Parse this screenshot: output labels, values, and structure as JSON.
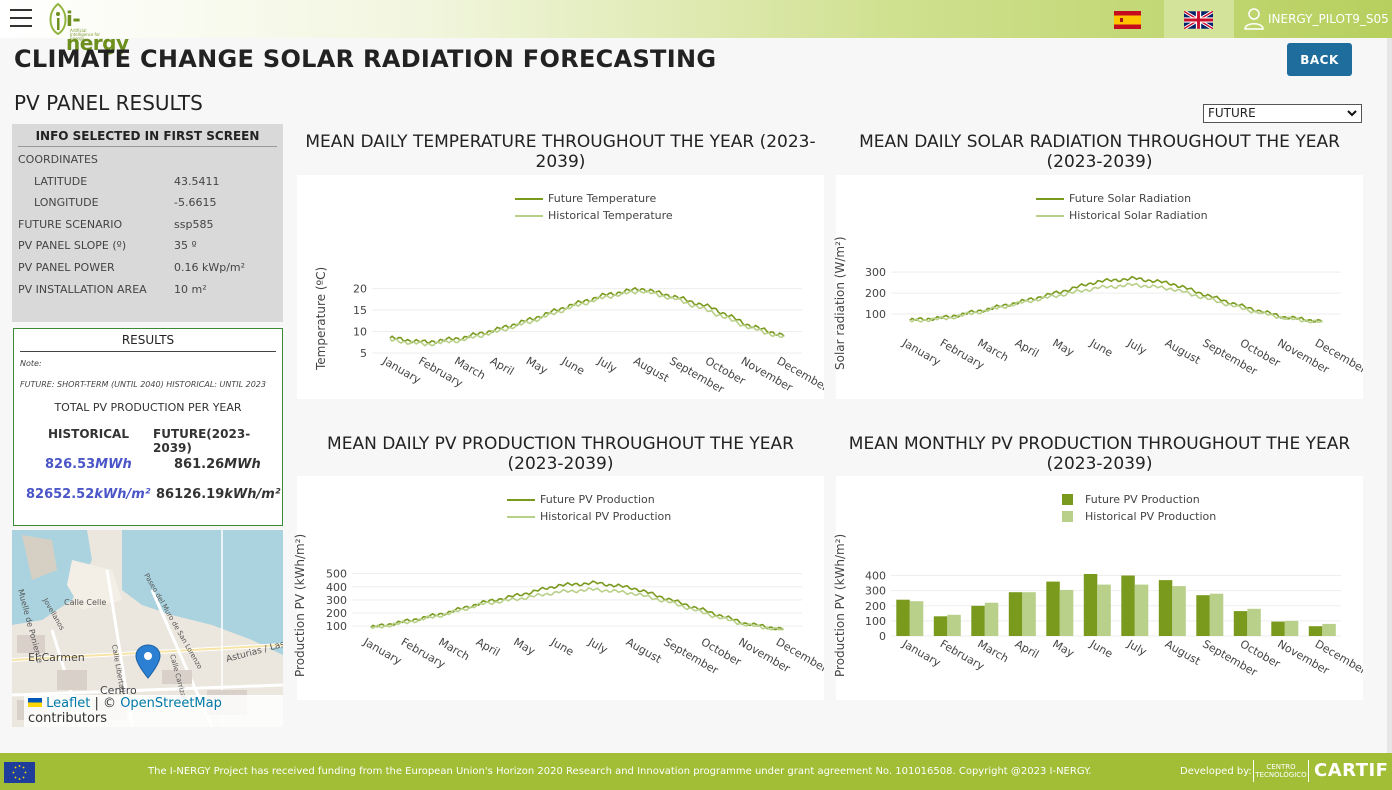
{
  "header": {
    "logo_text": "i-nergy",
    "logo_sub": "Artificial Intelligence for Energy",
    "user_label": "INERGY_PILOT9_S05"
  },
  "page": {
    "title": "CLIMATE CHANGE SOLAR RADIATION FORECASTING",
    "back_label": "BACK",
    "subtitle": "PV PANEL RESULTS",
    "scenario_select": "FUTURE"
  },
  "info": {
    "heading": "INFO SELECTED IN FIRST SCREEN",
    "coordinates_label": "COORDINATES",
    "latitude_label": "LATITUDE",
    "latitude": "43.5411",
    "longitude_label": "LONGITUDE",
    "longitude": "-5.6615",
    "scenario_label": "FUTURE SCENARIO",
    "scenario": "ssp585",
    "slope_label": "PV PANEL SLOPE (º)",
    "slope": "35 º",
    "power_label": "PV PANEL POWER",
    "power": "0.16 kWp/m²",
    "area_label": "PV INSTALLATION AREA",
    "area": "10 m²"
  },
  "results": {
    "heading": "RESULTS",
    "note_label": "Note:",
    "note_text": "FUTURE: SHORT-TERM (UNTIL 2040) HISTORICAL: UNTIL 2023",
    "total_label": "TOTAL PV PRODUCTION PER YEAR",
    "col_historical": "HISTORICAL",
    "col_future": "FUTURE(2023-2039)",
    "hist_mwh_num": "826.53",
    "hist_mwh_unit": "MWh",
    "fut_mwh_num": "861.26",
    "fut_mwh_unit": "MWh",
    "hist_kwh_num": "82652.52",
    "hist_kwh_unit": "kWh/m²",
    "fut_kwh_num": "86126.19",
    "fut_kwh_unit": "kWh/m²"
  },
  "map": {
    "labels": [
      "Muelle de Poniente",
      "Calle Celle",
      "Paseo del Muro de San Lorenzo",
      "Asturias / Las",
      "El Carmen",
      "Calle Libertad",
      "Calle Carrizal",
      "Centro",
      "Jovellanos"
    ],
    "attr_leaflet": "Leaflet",
    "attr_sep": " | © ",
    "attr_osm": "OpenStreetMap",
    "attr_contrib": " contributors"
  },
  "months": [
    "January",
    "February",
    "March",
    "April",
    "May",
    "June",
    "July",
    "August",
    "September",
    "October",
    "November",
    "December"
  ],
  "colors": {
    "future": "#7a9a1e",
    "historical": "#b9d08a",
    "accent": "#1f6d9c",
    "footer": "#a2bd36"
  },
  "chart_data": [
    {
      "type": "line",
      "title": "MEAN DAILY TEMPERATURE THROUGHOUT THE YEAR (2023-2039)",
      "ylabel": "Temperature (ºC)",
      "yticks": [
        5,
        10,
        15,
        20
      ],
      "ylim": [
        5,
        22
      ],
      "series": [
        {
          "name": "Future Temperature",
          "values": [
            8.5,
            7.5,
            8.5,
            10.5,
            13,
            16,
            18.5,
            20,
            18,
            15.5,
            11.5,
            9
          ]
        },
        {
          "name": "Historical Temperature",
          "values": [
            8,
            7,
            8,
            10,
            12.5,
            15.5,
            18,
            19.5,
            17.5,
            14.5,
            11,
            8.5
          ]
        }
      ]
    },
    {
      "type": "line",
      "title": "MEAN DAILY SOLAR RADIATION THROUGHOUT THE YEAR (2023-2039)",
      "ylabel": "Solar radiation (W/m²)",
      "yticks": [
        100,
        200,
        300
      ],
      "ylim": [
        0,
        310
      ],
      "series": [
        {
          "name": "Future Solar Radiation",
          "values": [
            70,
            85,
            120,
            160,
            205,
            255,
            270,
            245,
            185,
            130,
            85,
            65
          ]
        },
        {
          "name": "Historical Solar Radiation",
          "values": [
            65,
            80,
            115,
            155,
            190,
            225,
            240,
            220,
            170,
            120,
            80,
            60
          ]
        }
      ]
    },
    {
      "type": "line",
      "title": "MEAN DAILY PV PRODUCTION THROUGHOUT THE YEAR (2023-2039)",
      "ylabel": "Production PV (kWh/m²)",
      "yticks": [
        100,
        200,
        300,
        400,
        500
      ],
      "ylim": [
        40,
        520
      ],
      "series": [
        {
          "name": "Future PV Production",
          "values": [
            90,
            140,
            200,
            280,
            340,
            410,
            430,
            390,
            300,
            210,
            120,
            75
          ]
        },
        {
          "name": "Historical PV Production",
          "values": [
            85,
            130,
            190,
            270,
            310,
            360,
            380,
            350,
            280,
            190,
            110,
            70
          ]
        }
      ]
    },
    {
      "type": "bar",
      "title": "MEAN MONTHLY PV PRODUCTION THROUGHOUT THE YEAR (2023-2039)",
      "ylabel": "Production PV (kWh/m²)",
      "yticks": [
        0,
        100,
        200,
        300,
        400
      ],
      "ylim": [
        0,
        430
      ],
      "series": [
        {
          "name": "Future PV Production",
          "values": [
            240,
            130,
            200,
            290,
            360,
            410,
            400,
            370,
            270,
            165,
            95,
            65
          ]
        },
        {
          "name": "Historical PV Production",
          "values": [
            230,
            140,
            220,
            290,
            305,
            340,
            340,
            330,
            280,
            180,
            100,
            80
          ]
        }
      ]
    }
  ],
  "footer": {
    "funding_text": "The I-NERGY Project has received funding from the European Union's Horizon 2020 Research and Innovation programme under grant agreement No. 101016508. Copyright @2023 I-NERGY.",
    "developed_by": "Developed by:",
    "centro_line1": "CENTRO",
    "centro_line2": "TECNOLÓGICO",
    "cartif": "CARTIF"
  }
}
